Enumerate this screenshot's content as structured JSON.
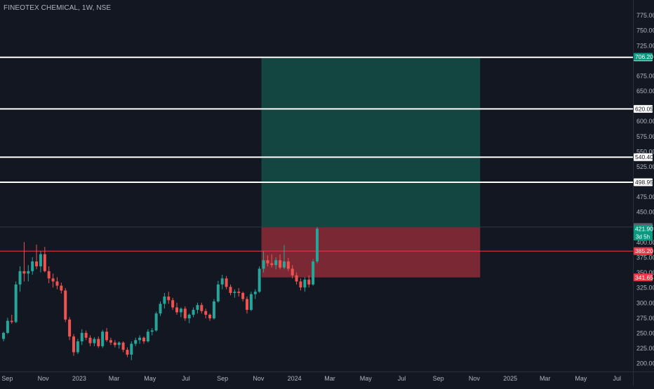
{
  "title": "FINEOTEX CHEMICAL, 1W, NSE",
  "colors": {
    "background": "#131722",
    "up": "#26a69a",
    "down": "#ef5350",
    "profit_zone": "#134541",
    "loss_zone": "#7a2934",
    "level_line": "#ffffff",
    "red_line": "#f23645",
    "axis_text": "#b2b5be"
  },
  "chart_data": {
    "type": "candlestick",
    "interval": "1W",
    "y_axis": {
      "min": 192,
      "max": 785,
      "ticks": [
        {
          "value": 775,
          "label": "775.00"
        },
        {
          "value": 750,
          "label": "750.00"
        },
        {
          "value": 725,
          "label": "725.00"
        },
        {
          "value": 675,
          "label": "675.00"
        },
        {
          "value": 650,
          "label": "650.00"
        },
        {
          "value": 600,
          "label": "600.00"
        },
        {
          "value": 575,
          "label": "575.00"
        },
        {
          "value": 550,
          "label": "550.00"
        },
        {
          "value": 525,
          "label": "525.00"
        },
        {
          "value": 475,
          "label": "475.00"
        },
        {
          "value": 450,
          "label": "450.00"
        },
        {
          "value": 400,
          "label": "400.00"
        },
        {
          "value": 375,
          "label": "375.00"
        },
        {
          "value": 350,
          "label": "350.00"
        },
        {
          "value": 325,
          "label": "325.00"
        },
        {
          "value": 300,
          "label": "300.00"
        },
        {
          "value": 275,
          "label": "275.00"
        },
        {
          "value": 250,
          "label": "250.00"
        },
        {
          "value": 225,
          "label": "225.00"
        },
        {
          "value": 200,
          "label": "200.00"
        }
      ]
    },
    "x_axis": {
      "start": "2022-08-22",
      "end": "2025-07-21",
      "ticks": [
        {
          "date": "2022-09-01",
          "label": "Sep"
        },
        {
          "date": "2022-11-01",
          "label": "Nov"
        },
        {
          "date": "2023-01-01",
          "label": "2023"
        },
        {
          "date": "2023-03-01",
          "label": "Mar"
        },
        {
          "date": "2023-05-01",
          "label": "May"
        },
        {
          "date": "2023-07-01",
          "label": "Jul"
        },
        {
          "date": "2023-09-01",
          "label": "Sep"
        },
        {
          "date": "2023-11-01",
          "label": "Nov"
        },
        {
          "date": "2024-01-01",
          "label": "2024"
        },
        {
          "date": "2024-03-01",
          "label": "Mar"
        },
        {
          "date": "2024-05-01",
          "label": "May"
        },
        {
          "date": "2024-07-01",
          "label": "Jul"
        },
        {
          "date": "2024-09-01",
          "label": "Sep"
        },
        {
          "date": "2024-11-01",
          "label": "Nov"
        },
        {
          "date": "2025-01-01",
          "label": "2025"
        },
        {
          "date": "2025-03-01",
          "label": "Mar"
        },
        {
          "date": "2025-05-01",
          "label": "May"
        },
        {
          "date": "2025-07-01",
          "label": "Jul"
        }
      ]
    },
    "candles": [
      {
        "date": "2022-08-22",
        "o": 240,
        "h": 252,
        "l": 236,
        "c": 250
      },
      {
        "date": "2022-08-29",
        "o": 250,
        "h": 275,
        "l": 248,
        "c": 270
      },
      {
        "date": "2022-09-05",
        "o": 270,
        "h": 280,
        "l": 265,
        "c": 268
      },
      {
        "date": "2022-09-12",
        "o": 268,
        "h": 335,
        "l": 266,
        "c": 330
      },
      {
        "date": "2022-09-19",
        "o": 330,
        "h": 360,
        "l": 318,
        "c": 352
      },
      {
        "date": "2022-09-26",
        "o": 352,
        "h": 400,
        "l": 335,
        "c": 348
      },
      {
        "date": "2022-10-03",
        "o": 348,
        "h": 362,
        "l": 335,
        "c": 352
      },
      {
        "date": "2022-10-10",
        "o": 352,
        "h": 375,
        "l": 346,
        "c": 368
      },
      {
        "date": "2022-10-17",
        "o": 368,
        "h": 396,
        "l": 355,
        "c": 360
      },
      {
        "date": "2022-10-24",
        "o": 360,
        "h": 385,
        "l": 350,
        "c": 380
      },
      {
        "date": "2022-10-31",
        "o": 380,
        "h": 392,
        "l": 350,
        "c": 352
      },
      {
        "date": "2022-11-07",
        "o": 352,
        "h": 360,
        "l": 332,
        "c": 340
      },
      {
        "date": "2022-11-14",
        "o": 340,
        "h": 348,
        "l": 325,
        "c": 335
      },
      {
        "date": "2022-11-21",
        "o": 335,
        "h": 342,
        "l": 322,
        "c": 328
      },
      {
        "date": "2022-11-28",
        "o": 328,
        "h": 333,
        "l": 315,
        "c": 320
      },
      {
        "date": "2022-12-05",
        "o": 320,
        "h": 324,
        "l": 268,
        "c": 272
      },
      {
        "date": "2022-12-12",
        "o": 272,
        "h": 276,
        "l": 238,
        "c": 244
      },
      {
        "date": "2022-12-19",
        "o": 244,
        "h": 248,
        "l": 212,
        "c": 218
      },
      {
        "date": "2022-12-26",
        "o": 218,
        "h": 240,
        "l": 215,
        "c": 236
      },
      {
        "date": "2023-01-02",
        "o": 236,
        "h": 256,
        "l": 230,
        "c": 250
      },
      {
        "date": "2023-01-09",
        "o": 250,
        "h": 254,
        "l": 238,
        "c": 242
      },
      {
        "date": "2023-01-16",
        "o": 242,
        "h": 246,
        "l": 228,
        "c": 233
      },
      {
        "date": "2023-01-23",
        "o": 233,
        "h": 243,
        "l": 228,
        "c": 240
      },
      {
        "date": "2023-01-30",
        "o": 240,
        "h": 244,
        "l": 225,
        "c": 228
      },
      {
        "date": "2023-02-06",
        "o": 228,
        "h": 255,
        "l": 225,
        "c": 252
      },
      {
        "date": "2023-02-13",
        "o": 252,
        "h": 258,
        "l": 235,
        "c": 238
      },
      {
        "date": "2023-02-20",
        "o": 238,
        "h": 242,
        "l": 230,
        "c": 234
      },
      {
        "date": "2023-02-27",
        "o": 234,
        "h": 238,
        "l": 226,
        "c": 230
      },
      {
        "date": "2023-03-06",
        "o": 230,
        "h": 236,
        "l": 224,
        "c": 234
      },
      {
        "date": "2023-03-13",
        "o": 234,
        "h": 236,
        "l": 218,
        "c": 222
      },
      {
        "date": "2023-03-20",
        "o": 222,
        "h": 226,
        "l": 210,
        "c": 214
      },
      {
        "date": "2023-03-27",
        "o": 214,
        "h": 236,
        "l": 205,
        "c": 232
      },
      {
        "date": "2023-04-03",
        "o": 232,
        "h": 242,
        "l": 228,
        "c": 238
      },
      {
        "date": "2023-04-10",
        "o": 238,
        "h": 246,
        "l": 232,
        "c": 242
      },
      {
        "date": "2023-04-17",
        "o": 242,
        "h": 244,
        "l": 232,
        "c": 236
      },
      {
        "date": "2023-04-24",
        "o": 236,
        "h": 256,
        "l": 234,
        "c": 252
      },
      {
        "date": "2023-05-01",
        "o": 252,
        "h": 258,
        "l": 246,
        "c": 254
      },
      {
        "date": "2023-05-08",
        "o": 254,
        "h": 285,
        "l": 252,
        "c": 282
      },
      {
        "date": "2023-05-15",
        "o": 282,
        "h": 302,
        "l": 278,
        "c": 298
      },
      {
        "date": "2023-05-22",
        "o": 298,
        "h": 316,
        "l": 290,
        "c": 310
      },
      {
        "date": "2023-05-29",
        "o": 310,
        "h": 318,
        "l": 298,
        "c": 304
      },
      {
        "date": "2023-06-05",
        "o": 304,
        "h": 308,
        "l": 288,
        "c": 292
      },
      {
        "date": "2023-06-12",
        "o": 292,
        "h": 300,
        "l": 280,
        "c": 284
      },
      {
        "date": "2023-06-19",
        "o": 284,
        "h": 292,
        "l": 276,
        "c": 290
      },
      {
        "date": "2023-06-26",
        "o": 290,
        "h": 294,
        "l": 270,
        "c": 274
      },
      {
        "date": "2023-07-03",
        "o": 274,
        "h": 282,
        "l": 266,
        "c": 280
      },
      {
        "date": "2023-07-10",
        "o": 280,
        "h": 292,
        "l": 276,
        "c": 288
      },
      {
        "date": "2023-07-17",
        "o": 288,
        "h": 300,
        "l": 282,
        "c": 296
      },
      {
        "date": "2023-07-24",
        "o": 296,
        "h": 300,
        "l": 282,
        "c": 286
      },
      {
        "date": "2023-07-31",
        "o": 286,
        "h": 290,
        "l": 274,
        "c": 280
      },
      {
        "date": "2023-08-07",
        "o": 280,
        "h": 282,
        "l": 270,
        "c": 274
      },
      {
        "date": "2023-08-14",
        "o": 274,
        "h": 306,
        "l": 272,
        "c": 302
      },
      {
        "date": "2023-08-21",
        "o": 302,
        "h": 336,
        "l": 300,
        "c": 330
      },
      {
        "date": "2023-08-28",
        "o": 330,
        "h": 346,
        "l": 322,
        "c": 340
      },
      {
        "date": "2023-09-04",
        "o": 340,
        "h": 344,
        "l": 322,
        "c": 326
      },
      {
        "date": "2023-09-11",
        "o": 326,
        "h": 330,
        "l": 312,
        "c": 316
      },
      {
        "date": "2023-09-18",
        "o": 316,
        "h": 322,
        "l": 308,
        "c": 318
      },
      {
        "date": "2023-09-25",
        "o": 318,
        "h": 324,
        "l": 310,
        "c": 316
      },
      {
        "date": "2023-10-02",
        "o": 316,
        "h": 318,
        "l": 302,
        "c": 306
      },
      {
        "date": "2023-10-09",
        "o": 306,
        "h": 310,
        "l": 282,
        "c": 288
      },
      {
        "date": "2023-10-16",
        "o": 288,
        "h": 318,
        "l": 286,
        "c": 314
      },
      {
        "date": "2023-10-23",
        "o": 314,
        "h": 322,
        "l": 306,
        "c": 318
      },
      {
        "date": "2023-10-30",
        "o": 318,
        "h": 360,
        "l": 316,
        "c": 356
      },
      {
        "date": "2023-11-06",
        "o": 356,
        "h": 385,
        "l": 350,
        "c": 370
      },
      {
        "date": "2023-11-13",
        "o": 370,
        "h": 378,
        "l": 360,
        "c": 365
      },
      {
        "date": "2023-11-20",
        "o": 365,
        "h": 380,
        "l": 358,
        "c": 362
      },
      {
        "date": "2023-11-27",
        "o": 362,
        "h": 375,
        "l": 355,
        "c": 370
      },
      {
        "date": "2023-12-04",
        "o": 370,
        "h": 380,
        "l": 355,
        "c": 358
      },
      {
        "date": "2023-12-11",
        "o": 358,
        "h": 395,
        "l": 355,
        "c": 368
      },
      {
        "date": "2023-12-18",
        "o": 368,
        "h": 374,
        "l": 352,
        "c": 356
      },
      {
        "date": "2023-12-25",
        "o": 356,
        "h": 362,
        "l": 340,
        "c": 345
      },
      {
        "date": "2024-01-01",
        "o": 345,
        "h": 350,
        "l": 330,
        "c": 335
      },
      {
        "date": "2024-01-08",
        "o": 335,
        "h": 340,
        "l": 320,
        "c": 325
      },
      {
        "date": "2024-01-15",
        "o": 325,
        "h": 342,
        "l": 318,
        "c": 338
      },
      {
        "date": "2024-01-22",
        "o": 338,
        "h": 345,
        "l": 325,
        "c": 330
      },
      {
        "date": "2024-01-29",
        "o": 330,
        "h": 372,
        "l": 328,
        "c": 368
      },
      {
        "date": "2024-02-05",
        "o": 368,
        "h": 425,
        "l": 365,
        "c": 421.9
      }
    ],
    "horizontal_levels": [
      {
        "value": 705.4,
        "label": "705.40"
      },
      {
        "value": 620.05,
        "label": "620.05"
      },
      {
        "value": 540.4,
        "label": "540.40"
      },
      {
        "value": 498.95,
        "label": "498.95"
      }
    ],
    "red_level": {
      "value": 385.2,
      "label": "385.20"
    },
    "position": {
      "entry": 424.95,
      "target": 706.2,
      "stop": 341.65,
      "start_date": "2023-11-06",
      "end_date": "2024-11-11"
    },
    "price_badges": [
      {
        "value": 706.2,
        "label": "706.20",
        "kind": "target"
      },
      {
        "value": 424.95,
        "label": "424.95",
        "kind": "entry"
      },
      {
        "value": 421.9,
        "label": "421.90",
        "kind": "last"
      },
      {
        "value": 341.65,
        "label": "341.65",
        "kind": "stop"
      }
    ],
    "countdown_label": "3d 5h"
  }
}
